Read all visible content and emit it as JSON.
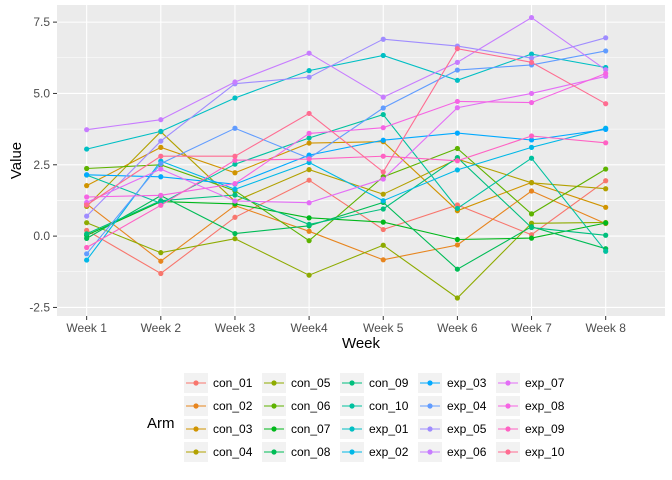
{
  "chart_data": {
    "type": "line",
    "xlabel": "Week",
    "ylabel": "Value",
    "categories": [
      "Week 1",
      "Week 2",
      "Week 3",
      "Week4",
      "Week 5",
      "Week 6",
      "Week 7",
      "Week 8"
    ],
    "ylim": [
      -2.8,
      8.1
    ],
    "yticks": [
      -2.5,
      0.0,
      2.5,
      5.0,
      7.5
    ],
    "ytick_labels": [
      "-2.5",
      "0.0",
      "2.5",
      "5.0",
      "7.5"
    ],
    "grid": true,
    "legend": {
      "title": "Arm",
      "position": "bottom"
    },
    "series": [
      {
        "name": "con_01",
        "color": "#F8766D",
        "values": [
          0.2,
          -1.31,
          0.66,
          1.96,
          0.23,
          1.09,
          0.05,
          1.94
        ]
      },
      {
        "name": "con_02",
        "color": "#E7851E",
        "values": [
          1.13,
          -0.88,
          1.07,
          0.17,
          -0.83,
          -0.31,
          1.58,
          0.44
        ]
      },
      {
        "name": "con_03",
        "color": "#D09400",
        "values": [
          1.77,
          3.11,
          2.22,
          3.26,
          3.31,
          0.89,
          1.88,
          1.01
        ]
      },
      {
        "name": "con_04",
        "color": "#B2A100",
        "values": [
          1.04,
          3.66,
          1.22,
          2.33,
          1.47,
          2.7,
          1.87,
          1.66
        ]
      },
      {
        "name": "con_05",
        "color": "#8EAB00",
        "values": [
          0.47,
          -0.58,
          -0.09,
          -1.37,
          -0.32,
          -2.17,
          0.45,
          0.48
        ]
      },
      {
        "name": "con_06",
        "color": "#5EB300",
        "values": [
          2.37,
          2.5,
          1.59,
          -0.16,
          2.08,
          3.07,
          0.78,
          2.35
        ]
      },
      {
        "name": "con_07",
        "color": "#00B81B",
        "values": [
          0.03,
          1.21,
          1.13,
          0.64,
          0.49,
          -0.12,
          -0.07,
          0.46
        ]
      },
      {
        "name": "con_08",
        "color": "#00BC56",
        "values": [
          -0.08,
          1.42,
          0.09,
          0.36,
          1.18,
          -1.16,
          0.33,
          -0.44
        ]
      },
      {
        "name": "con_09",
        "color": "#00BF7D",
        "values": [
          0.08,
          1.24,
          1.44,
          0.41,
          0.95,
          2.75,
          0.3,
          0.03
        ]
      },
      {
        "name": "con_10",
        "color": "#00C19F",
        "values": [
          2.14,
          1.15,
          2.52,
          3.44,
          4.26,
          0.97,
          2.73,
          -0.53
        ]
      },
      {
        "name": "exp_01",
        "color": "#00BFC4",
        "values": [
          3.05,
          3.67,
          4.84,
          5.8,
          6.33,
          5.46,
          6.38,
          5.91
        ]
      },
      {
        "name": "exp_02",
        "color": "#00B8E7",
        "values": [
          -0.84,
          2.63,
          1.64,
          2.58,
          1.24,
          2.32,
          3.11,
          3.78
        ]
      },
      {
        "name": "exp_03",
        "color": "#00A9FF",
        "values": [
          2.15,
          2.08,
          1.82,
          2.84,
          3.36,
          3.61,
          3.37,
          3.74
        ]
      },
      {
        "name": "exp_04",
        "color": "#619CFF",
        "values": [
          -0.62,
          2.54,
          3.78,
          2.73,
          4.49,
          5.82,
          6.0,
          6.49
        ]
      },
      {
        "name": "exp_05",
        "color": "#9F8CFF",
        "values": [
          0.7,
          3.33,
          5.34,
          5.57,
          6.9,
          6.66,
          6.24,
          6.95
        ]
      },
      {
        "name": "exp_06",
        "color": "#C77CFF",
        "values": [
          3.73,
          4.08,
          5.4,
          6.41,
          4.87,
          6.09,
          7.66,
          5.83
        ]
      },
      {
        "name": "exp_07",
        "color": "#E36EF6",
        "values": [
          1.18,
          2.35,
          1.23,
          1.17,
          2.0,
          4.5,
          5.0,
          5.6
        ]
      },
      {
        "name": "exp_08",
        "color": "#F564E3",
        "values": [
          1.37,
          1.43,
          1.84,
          3.6,
          3.8,
          4.72,
          4.68,
          5.7
        ]
      },
      {
        "name": "exp_09",
        "color": "#FF61C3",
        "values": [
          -0.4,
          1.08,
          2.66,
          2.7,
          2.8,
          2.64,
          3.51,
          3.27
        ]
      },
      {
        "name": "exp_10",
        "color": "#FF6C91",
        "values": [
          1.09,
          2.8,
          2.8,
          4.3,
          2.25,
          6.57,
          6.09,
          4.64
        ]
      }
    ]
  }
}
